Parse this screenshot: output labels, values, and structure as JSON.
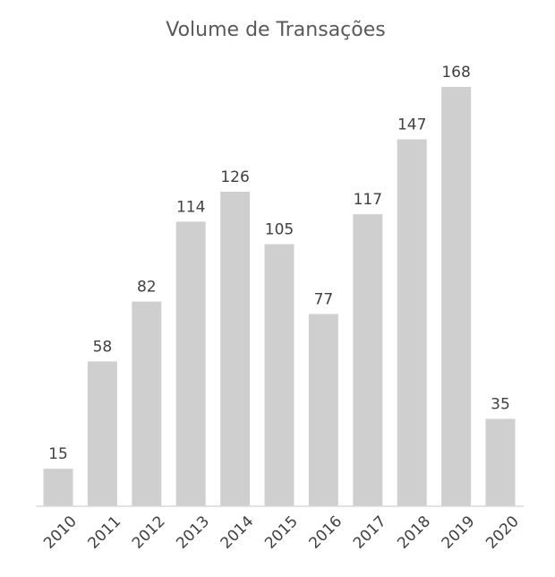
{
  "chart_data": {
    "type": "bar",
    "title": "Volume de Transações",
    "categories": [
      "2010",
      "2011",
      "2012",
      "2013",
      "2014",
      "2015",
      "2016",
      "2017",
      "2018",
      "2019",
      "2020"
    ],
    "values": [
      15,
      58,
      82,
      114,
      126,
      105,
      77,
      117,
      147,
      168,
      35
    ],
    "xlabel": "",
    "ylabel": "",
    "ylim": [
      0,
      168
    ],
    "grid": false,
    "legend": "none",
    "data_labels": true,
    "bar_color": "#cfcfcf"
  }
}
